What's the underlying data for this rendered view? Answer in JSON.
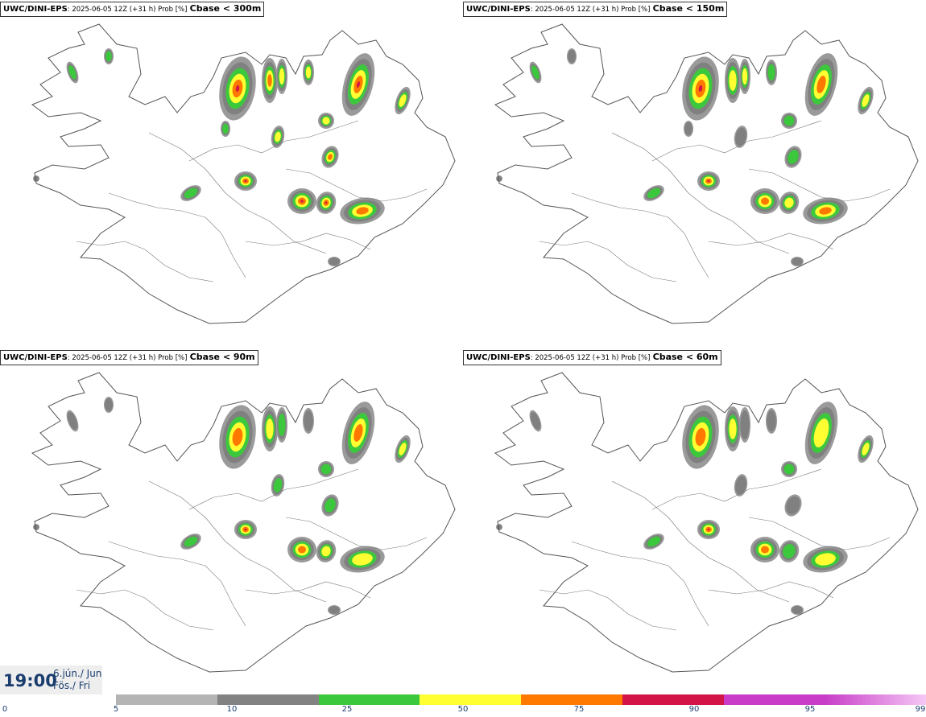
{
  "panels": [
    {
      "model": "UWC/DINI-EPS",
      "meta": ": 2025-06-05 12Z (+31 h) Prob [%]",
      "param": "Cbase < 300m"
    },
    {
      "model": "UWC/DINI-EPS",
      "meta": ": 2025-06-05 12Z (+31 h) Prob [%]",
      "param": "Cbase < 150m"
    },
    {
      "model": "UWC/DINI-EPS",
      "meta": ": 2025-06-05 12Z (+31 h) Prob [%]",
      "param": "Cbase < 90m"
    },
    {
      "model": "UWC/DINI-EPS",
      "meta": ": 2025-06-05 12Z (+31 h) Prob [%]",
      "param": "Cbase < 60m"
    }
  ],
  "valid_time": {
    "time": "19:00",
    "date_is": "6.jún./ Jun",
    "day": "Fös./ Fri"
  },
  "legend": {
    "ticks": [
      "0",
      "5",
      "10",
      "25",
      "50",
      "75",
      "90",
      "95",
      "99"
    ],
    "colors": [
      "#b4b4b4",
      "#828282",
      "#3cc83c",
      "#ffff32",
      "#ff7800",
      "#d21446",
      "#c83cc8",
      "#f5c8f5"
    ]
  },
  "map_style": {
    "coast": "#555555",
    "lowprob": "#9a9a9a",
    "midprob": "#808080"
  }
}
